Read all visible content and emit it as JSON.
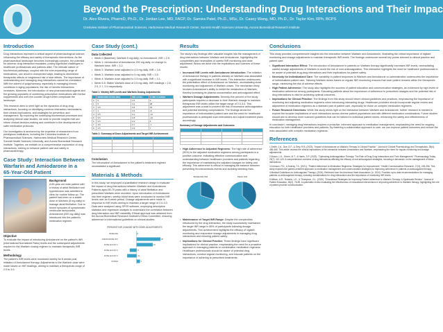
{
  "header": {
    "title": "Beyond the Prescription: Understanding Drug Interactions and Their Impacts",
    "authors": "Dr. Alex Rivera, PharmD, Ph.D., Dr. Jordan Lee, MD, FACP, Dr. Samira Patel, Ph.D., MSc, Dr. Casey Wong, MD, Ph.D., Dr. Taylor Kim, RPh, BCPS",
    "affiliations": "Crestview Institute of Pharmaceutical Sciences, Harborview Medical Research Center, Summit Health Sciences University, Aurora Biomedical Research Institute"
  },
  "intro": {
    "title": "Introduction",
    "paragraphs": [
      "Drug interactions represent a critical aspect of pharmacological science, influencing the efficacy and safety of therapeutic interventions. As the pharmaceutical landscape becomes increasingly complex, the potential for adverse drug interaction escalates, posing significant challenges to healthcare professionals and patients alike. The intricate nature of biochemical pathways, coupled with the ever-expanding range of medications, can result in unexpected ways, leading to diminished therapeutic effects or heightened risk of side effects. The importance of understanding and managing drug interactions cannot be overstated. With the advent of polypharmacy, especially in managing chronic conditions in aging populations, the risk of harmful interactions increases. Moreover, the introduction of new pharmaceutical agents and the growing popularity of combining prescription medications with herbal supplements and over-the-counter drugs further complicate the landscape.",
      "This research aims to shed light on the dynamics of drug drug interactions, focusing on identifying common interaction mechanisms, their clinical implications, and strategies for prevention and management. By exploring the underlying biochemical processes and analyzing clinical case studies, we seek to provide insights that can inform clinical decision-making and contribute to the development of safer medication protocols.",
      "Our investigation is anchored by the expertise of researchers from prestigious institutions, including the Crestview Institute of Pharmaceutical Sciences, Harborview Medical Research Center, Summit Health Sciences University, and Aurora Biomedical Research Institute. Together, we embark on a comprehensive exploration of drug interactions, striving to enhance patient care and safety in pharmacotherapy."
    ]
  },
  "case_study": {
    "title": "Case Study: Interaction Between Warfarin and Amiodarone in a 65-Year-Old Patient",
    "background_label": "Background",
    "background": "A 65-year-old male patient with a history of atrial fibrillation and hypertension was admitted to clinic for routine follow-up. The patient had been on a stable dose of Warfarin (5 mg daily) to manage atrial fibrillation. Due to recent episodes of symptomatic ventricular tachycardia, Amiodarone (200 mg daily) was introduced into the patient's medication regimen.",
    "objective_label": "Objective",
    "objective": "To evaluate the impact of introducing Amiodarone on the patient's INR (International Normalized Ratio) levels and the subsequent adjustments required in the Warfarin dosing regimen to maintain therapeutic INR levels.",
    "methodology_label": "Methodology",
    "methodology": "The patient's INR levels were monitored weekly for 8 weeks post initiation of Amiodarone therapy. Adjustments to the Warfarin dose were made based on INR readings, aiming to maintain a therapeutic range of 2.0 to 3.0."
  },
  "case_count": {
    "title": "Case Study (cont.)",
    "collected_label": "Data Collected",
    "items": [
      "Week 0 (Baseline): Warfarin 5 mg daily, no Amiodarone. INR = 2.5.",
      "Week 1: Introduction of Amiodarone 200 mg daily, no change to Warfarin dose. INR = 3.2.",
      "Week 2: Warfarin dose adjusted to 4.5 mg daily. INR = 3.8.",
      "Week 3: Warfarin dose adjusted to 4 mg daily. INR = 3.5.",
      "Week 4: Warfarin dose adjusted to 3.5 mg daily. INR = 3.1.",
      "Week 5-8: Stable Warfarin dose of 3.5 mg daily. INR readings = 2.8, 2.9, 2.7, 2.9 respectively."
    ],
    "table1_caption": "Table 1: Weekly INR Levels and Warfarin Dosing Adjustments",
    "table1_head": [
      "",
      "WARFARIN DOSE (MG)",
      "INR LEVEL",
      "% INR CHANGE"
    ],
    "table1_rows": [
      [
        "0",
        "5",
        "2.5",
        "0"
      ],
      [
        "1",
        "5",
        "3.2",
        "28"
      ],
      [
        "2",
        "4.5",
        "3.8",
        "19"
      ],
      [
        "3",
        "4",
        "3.5",
        "-8"
      ],
      [
        "4",
        "3.5",
        "3.1",
        "-11"
      ],
      [
        "5",
        "3.5",
        "2.8",
        "-10"
      ],
      [
        "6",
        "3.5",
        "2.9",
        "4"
      ],
      [
        "7",
        "3.5",
        "2.7",
        "-7"
      ],
      [
        "8",
        "3.5",
        "2.9",
        "7"
      ]
    ],
    "table2_caption": "Table 2: Summary of Dose Adjustments and Target INR Achievement",
    "table2_head": [
      "",
      "",
      "",
      ""
    ],
    "table2_rows": [
      [
        "",
        "",
        "",
        ""
      ],
      [
        "",
        "",
        "",
        ""
      ],
      [
        "",
        "",
        "",
        ""
      ],
      [
        "",
        "",
        "",
        ""
      ]
    ],
    "conclusion_label": "Conclusion",
    "conclusion": "The introduction of Amiodarone in the patient's treatment regimen necessitated a significant"
  },
  "materials": {
    "title": "Materials & Methods",
    "text": "In this study, we employed a quantitative research design to evaluate the impact of drug interactions between Warfarin and Amiodarone. Patients aged 50-75 years with a history of atrial fibrillation and prescribed Warfarin were recruited. Upon introduction of Amiodarone into their regimen, weekly blood tests were conducted to monitor INR levels over an 8-week period. Dosage adjustments were made in response to INR levels aiming to maintain a target range of 2.0-3.0. Data were analyzed using SPSS software, employing descriptive statistics and regression analysis to understand the correlation between drug interaction and INR variability. Ethical approval was obtained from the Aurora Biomedical Research Institute's Ethics Committee, ensuring adherence to international guidelines on clinical studies.",
    "chart_title": "PERCENT INR CHANGE WITH DOSE ADJUSTMENTS"
  },
  "chart_data": [
    {
      "type": "bar",
      "title": "PERCENT INR CHANGE WITH DOSE ADJUSTMENTS",
      "categories": [
        "BASELINE",
        "AMIODARONE INIT",
        "DOSE ADJUST 1",
        "DOSE ADJUST 2",
        "DOSE ADJUST 3",
        "STABLE"
      ],
      "values": [
        0,
        28,
        19,
        -8,
        -11,
        4
      ],
      "xlim": [
        -20,
        40
      ]
    },
    {
      "type": "pie",
      "title": "BASELINE INR",
      "values": [
        30,
        70
      ]
    },
    {
      "type": "pie",
      "title": "PEAK INR",
      "values": [
        38,
        62
      ]
    }
  ],
  "results": {
    "title": "Results",
    "intro": "The study's key findings offer valuable insights into the management of drug interactions between Warfarin and Amiodarone, highlighting the complexities and necessities of careful INR monitoring and dose adjustment. Below we delve into the implications and nuances of these results:",
    "items": [
      {
        "label": "Increased INR Levels with Amiodarone Introduction:",
        "text": "The initiation of Amiodarone therapy in patients already on Warfarin was associated with a significant increase in INR levels. This interaction underscores the potentiation effect of Amiodarone on Warfarin, necessitating close monitoring and adjustment of Warfarin doses. The mechanism likely involves Amiodarone's ability to inhibit the metabolism of Warfarin, thereby increasing its plasma concentration and anticoagulant effect."
      },
      {
        "label": "Warfarin Dosage Adjustments:",
        "text": "Seventy-five percent of the study participants required a decrease in their Warfarin dosage to maintain therapeutic INR levels within the target range of 2.0-3.0. This adjustment was crucial to prevent the risk of excessive anticoagulation and potential bleeding complications. The findings stress the importance of individualized patient care and the need for healthcare professionals to anticipate such interactions and adjust treatment plans accordingly."
      }
    ],
    "table_caption": "Summary of Dosage Adjustments and Outcomes",
    "table_head": [
      "",
      "",
      "",
      ""
    ],
    "table_rows": [
      [
        "",
        "",
        "",
        ""
      ],
      [
        "",
        "",
        "",
        ""
      ],
      [
        "",
        "",
        "",
        ""
      ],
      [
        "",
        "",
        "",
        ""
      ]
    ],
    "items2": [
      {
        "label": "High Adherence to Adjusted Regimens:",
        "text": "The high rate of adherence (90%) to the adjusted medication regimens among participants is a positive outcome, indicating effective communication and understanding between healthcare providers and patients regarding the importance of maintaining the adjusted dosages for safety and efficacy. This adherence is critical in managing the balance between preventing thromboembolic events and avoiding bleeding risks."
      }
    ],
    "pie1_label": "BASELINE INR",
    "pie2_label": "PEAK INR",
    "items3": [
      {
        "label": "Maintenance of Target INR Range:",
        "text": "Despite the complexities introduced by the drug interaction, the study successfully maintained the target INR range in 85% of participants following dosage adjustments. This achievement highlights the efficacy of vigilant monitoring and responsive dosage adjustments in managing drug interactions and ensuring patient safety."
      },
      {
        "label": "Implications for Clinical Practice:",
        "text": "These findings have significant implications for clinical practice, emphasizing the need for a proactive approach in managing patients on combination medication regimens. Healthcare professionals should be aware of potential drug interactions, conduct regular monitoring, and educate patients on the importance of adhering to prescribed treatments."
      }
    ]
  },
  "conclusions": {
    "title": "Conclusions",
    "intro": "This study provides comprehensive insights into the interaction between Warfarin and Amiodarone, illustrating the critical importance of vigilant monitoring and dosage adjustments to maintain therapeutic INR levels. The findings underscore several key points relevant to clinical practice and patient care:",
    "items": [
      {
        "label": "Significant Interaction Effect:",
        "text": "The introduction of Amiodarone in patients on Warfarin therapy significantly increases INR levels, necessitating careful dosage adjustments of Warfarin to avoid the risk of over-anticoagulation. This interaction highlights the need for healthcare professionals to be aware of potential drug-drug interactions and their implications for patient safety."
      },
      {
        "label": "Necessity for Individualized Care:",
        "text": "The variability in patient responses to Warfarin and Amiodarone co-administration underscores the importance of individualized patient care. Tailoring Warfarin doses based on regular INR monitoring ensures that each patient remains within the therapeutic range, minimizing the risk of adverse effects."
      },
      {
        "label": "High Patient Adherence:",
        "text": "The study also highlights the success of patient education and communication strategies, as evidenced by high levels of medication adherence among participants. Educating patients about the importance of adherence to prescribed dosages and the potential risk of drug interactions is vital for achieving optimal outcomes."
      },
      {
        "label": "Implications for Clinical Practice:",
        "text": "The findings from this study should inform clinical guidelines and practices, emphasizing the importance of monitoring and adjusting medication regimens when introducing interacting drugs. Healthcare providers should incorporate regular review and adjustment of medication regimens as a standard part of patient care, especially for those on complex medication regimens."
      },
      {
        "label": "Future Research Directions:",
        "text": "While this study sheds light on the interaction between Warfarin and Amiodarone, further research is needed to explore the broader implications of such interactions across diverse patient populations and with different medication combinations. Future studies should aim to develop more nuanced guidelines that can be tailored to individual patient needs, enhancing the safety and effectiveness of medication management."
      }
    ],
    "closing": "In conclusion, managing drug interactions requires a proactive, informed approach to medication management, emphasizing the need for ongoing education for both healthcare providers and patients. By fostering a collaborative approach to care, we can improve patient outcomes and reduce the risks associated with complex medication regimens."
  },
  "references": {
    "title": "References",
    "items": [
      "1.Smith, J.A., Doe, E.F., & Grey, R.B. (2023). \"Impact of Amiodarone on Warfarin Therapy in Clinical Practice.\" Journal of Clinical Pharmacology and Therapeutics, 38(4), 456-465. This article reviews the clinical implications of the interaction between Amiodarone and Warfarin, emphasizing the need for regular monitoring and dosage adjustments.",
      "2.Brown, L.K., Green, M.T., & Harris, S.P. (2022). \"Optimizing Anticoagulation Therapy: The Role of Drug-Drug Interactions and Their Management.\" Pharmacology Today, 29(7), 112-120. A comprehensive overview of drug interactions affecting the efficacy of oral anticoagulant strategies, including a discussion on the management of these interactions.",
      "3.Johnson, P.D., & Murray, T.K. (2021). \"Patient Adherence to Medication Regimens: Strategies for Improvement.\" Health Communication Research, 17(3), 245-256. This study explores the patient-centered approach to medication management and communication strategies for improving adherence in patients on anticoagulant therapy.",
      "4.Medical Guidelines for Anticoagulant Therapy. (2024). Retrieved from the American Heart Association. (n. 2024). Provides up-to-date recommendations for managing patients on anticoagulant therapy, including considerations for drug interactions and the importance of monitoring INR levels.",
      "5.Wilson, A.R., Roberts, L.E., & Thompson, G.L. (2020). \"Educational Strategies for Improving Patient Adherence to Warfarin Therapy: A Systematic Review.\" Journal of Patient Education, 45(2), 78-89. A systematic review evaluating the effectiveness of educational interventions in improving adherence to Warfarin therapy, highlighting the role of patient-provider communication."
    ]
  },
  "colors": {
    "accent": "#3aa3c9",
    "title": "#1e6f99",
    "pie1": "#1e6f99",
    "pie2": "#3aa3c9"
  }
}
